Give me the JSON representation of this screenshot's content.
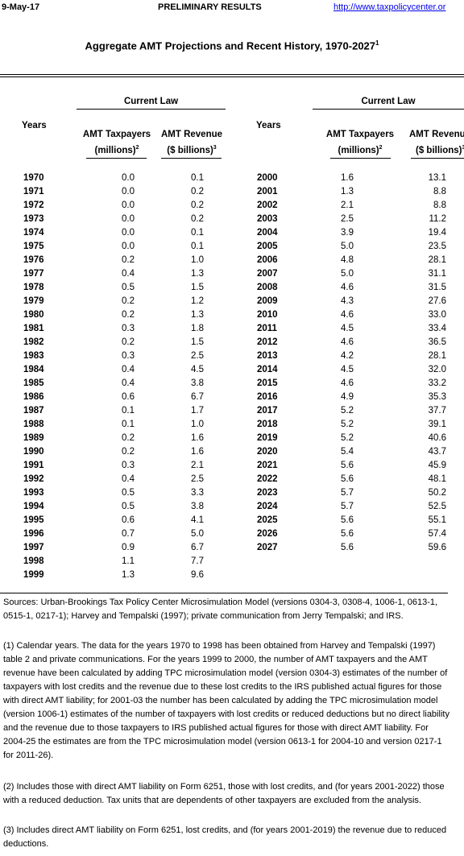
{
  "header": {
    "date": "9-May-17",
    "status": "PRELIMINARY RESULTS",
    "url": "http://www.taxpolicycenter.or"
  },
  "title": "Aggregate AMT Projections and Recent History, 1970-2027",
  "title_sup": "1",
  "columns": {
    "group_label": "Current Law",
    "years_label": "Years",
    "taxpayers_line1": "AMT Taxpayers",
    "taxpayers_line2": "(millions)",
    "taxpayers_sup": "2",
    "revenue_line1": "AMT Revenue",
    "revenue_line2": "($ billions)",
    "revenue_sup": "3"
  },
  "left_rows": [
    [
      "1970",
      "0.0",
      "0.1"
    ],
    [
      "1971",
      "0.0",
      "0.2"
    ],
    [
      "1972",
      "0.0",
      "0.2"
    ],
    [
      "1973",
      "0.0",
      "0.2"
    ],
    [
      "1974",
      "0.0",
      "0.1"
    ],
    [
      "1975",
      "0.0",
      "0.1"
    ],
    [
      "1976",
      "0.2",
      "1.0"
    ],
    [
      "1977",
      "0.4",
      "1.3"
    ],
    [
      "1978",
      "0.5",
      "1.5"
    ],
    [
      "1979",
      "0.2",
      "1.2"
    ],
    [
      "1980",
      "0.2",
      "1.3"
    ],
    [
      "1981",
      "0.3",
      "1.8"
    ],
    [
      "1982",
      "0.2",
      "1.5"
    ],
    [
      "1983",
      "0.3",
      "2.5"
    ],
    [
      "1984",
      "0.4",
      "4.5"
    ],
    [
      "1985",
      "0.4",
      "3.8"
    ],
    [
      "1986",
      "0.6",
      "6.7"
    ],
    [
      "1987",
      "0.1",
      "1.7"
    ],
    [
      "1988",
      "0.1",
      "1.0"
    ],
    [
      "1989",
      "0.2",
      "1.6"
    ],
    [
      "1990",
      "0.2",
      "1.6"
    ],
    [
      "1991",
      "0.3",
      "2.1"
    ],
    [
      "1992",
      "0.4",
      "2.5"
    ],
    [
      "1993",
      "0.5",
      "3.3"
    ],
    [
      "1994",
      "0.5",
      "3.8"
    ],
    [
      "1995",
      "0.6",
      "4.1"
    ],
    [
      "1996",
      "0.7",
      "5.0"
    ],
    [
      "1997",
      "0.9",
      "6.7"
    ],
    [
      "1998",
      "1.1",
      "7.7"
    ],
    [
      "1999",
      "1.3",
      "9.6"
    ]
  ],
  "right_rows": [
    [
      "2000",
      "1.6",
      "13.1"
    ],
    [
      "2001",
      "1.3",
      "8.8"
    ],
    [
      "2002",
      "2.1",
      "8.8"
    ],
    [
      "2003",
      "2.5",
      "11.2"
    ],
    [
      "2004",
      "3.9",
      "19.4"
    ],
    [
      "2005",
      "5.0",
      "23.5"
    ],
    [
      "2006",
      "4.8",
      "28.1"
    ],
    [
      "2007",
      "5.0",
      "31.1"
    ],
    [
      "2008",
      "4.6",
      "31.5"
    ],
    [
      "2009",
      "4.3",
      "27.6"
    ],
    [
      "2010",
      "4.6",
      "33.0"
    ],
    [
      "2011",
      "4.5",
      "33.4"
    ],
    [
      "2012",
      "4.6",
      "36.5"
    ],
    [
      "2013",
      "4.2",
      "28.1"
    ],
    [
      "2014",
      "4.5",
      "32.0"
    ],
    [
      "2015",
      "4.6",
      "33.2"
    ],
    [
      "2016",
      "4.9",
      "35.3"
    ],
    [
      "2017",
      "5.2",
      "37.7"
    ],
    [
      "2018",
      "5.2",
      "39.1"
    ],
    [
      "2019",
      "5.2",
      "40.6"
    ],
    [
      "2020",
      "5.4",
      "43.7"
    ],
    [
      "2021",
      "5.6",
      "45.9"
    ],
    [
      "2022",
      "5.6",
      "48.1"
    ],
    [
      "2023",
      "5.7",
      "50.2"
    ],
    [
      "2024",
      "5.7",
      "52.5"
    ],
    [
      "2025",
      "5.6",
      "55.1"
    ],
    [
      "2026",
      "5.6",
      "57.4"
    ],
    [
      "2027",
      "5.6",
      "59.6"
    ]
  ],
  "notes": {
    "sources": "Sources: Urban-Brookings Tax Policy Center Microsimulation Model (versions 0304-3, 0308-4, 1006-1, 0613-1, 0515-1, 0217-1); Harvey and Tempalski (1997); private communication from Jerry Tempalski; and IRS.",
    "note1": "(1) Calendar years. The data for the years 1970 to 1998 has been obtained from Harvey and Tempalski (1997) table 2 and private communications. For the years 1999 to 2000, the number of AMT taxpayers and the AMT revenue have been calculated by adding TPC microsimulation model (version 0304-3) estimates of the number of taxpayers with lost credits and the revenue due to these lost credits to the IRS published actual figures for those with direct AMT liability; for 2001-03 the number has been calculated by adding the TPC microsimulation model (version 1006-1) estimates of the number of taxpayers with lost credits or reduced deductions but no direct liability and the revenue due to those taxpayers to IRS published actual figures for those with direct AMT liability. For 2004-25 the estimates are from the TPC microsimulation model (version 0613-1 for 2004-10 and version 0217-1 for 2011-26).",
    "note2": "(2) Includes those with direct AMT liability on Form 6251, those with lost credits, and (for years 2001-2022) those with a reduced deduction. Tax units that are dependents of other taxpayers are excluded from the analysis.",
    "note3": "(3) Includes direct AMT liability on Form 6251, lost credits, and (for years 2001-2019) the revenue due to reduced deductions."
  }
}
